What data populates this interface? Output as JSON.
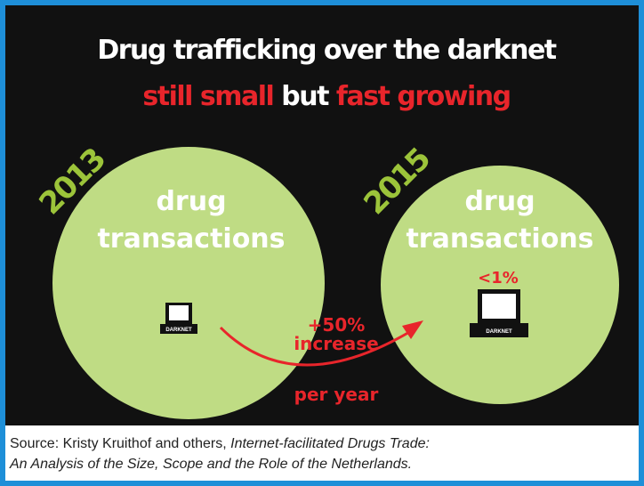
{
  "title": {
    "line1": "Drug trafficking over the darknet",
    "line2": [
      "still small",
      "but",
      "fast growing"
    ]
  },
  "left": {
    "year": "2013",
    "label": [
      "drug",
      "transactions"
    ],
    "device": "DARKNET"
  },
  "right": {
    "year": "2015",
    "label": [
      "drug",
      "transactions"
    ],
    "share": "<1%",
    "device": "DARKNET"
  },
  "growth": {
    "amount": "+50%",
    "word": "increase",
    "period": "per year"
  },
  "source": {
    "prefix": "Source: Kristy Kruithof and others, ",
    "title_line1": "Internet-facilitated Drugs Trade:",
    "title_line2": "An Analysis of the Size, Scope and the Role of the Netherlands."
  }
}
